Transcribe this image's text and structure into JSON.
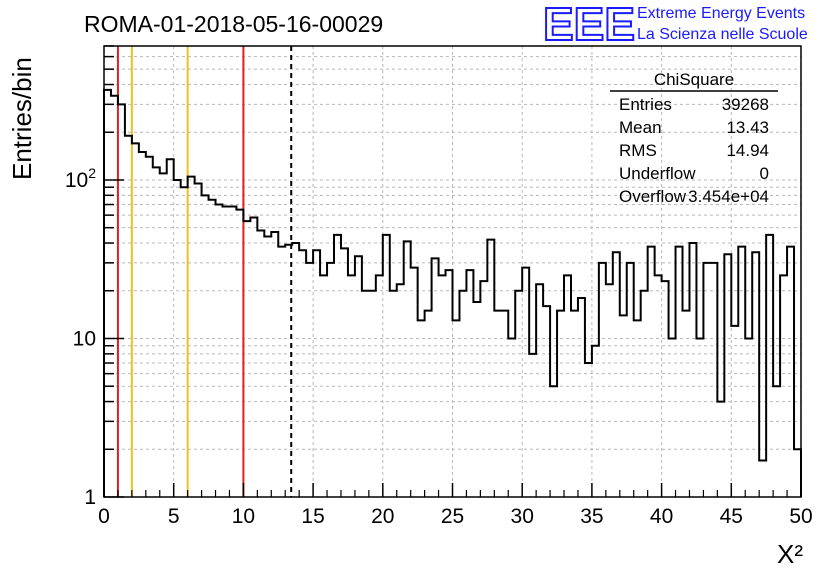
{
  "chart_data": {
    "type": "bar",
    "title": "ROMA-01-2018-05-16-00029",
    "ylabel": "Entries/bin",
    "xlabel": "X²",
    "xlim": [
      0,
      50
    ],
    "ylim": [
      1,
      700
    ],
    "ylog": true,
    "grid": true,
    "x_ticks": [
      "0",
      "5",
      "10",
      "15",
      "20",
      "25",
      "30",
      "35",
      "40",
      "45",
      "50"
    ],
    "y_ticks": [
      {
        "value": 1,
        "label": "1"
      },
      {
        "value": 10,
        "label": "10"
      },
      {
        "value": 100,
        "label": "10",
        "exp": "2"
      }
    ],
    "bin_width": 0.5,
    "values": [
      370,
      340,
      300,
      190,
      170,
      150,
      140,
      120,
      110,
      135,
      100,
      90,
      105,
      95,
      80,
      75,
      70,
      68,
      68,
      65,
      55,
      58,
      48,
      44,
      47,
      38,
      39,
      40,
      36,
      30,
      36,
      25,
      30,
      45,
      37,
      25,
      33,
      20,
      20,
      25,
      45,
      20,
      22,
      41,
      28,
      13,
      15,
      32,
      25,
      27,
      13,
      20,
      27,
      17,
      23,
      42,
      15,
      15,
      10,
      20,
      28,
      8,
      22,
      16,
      5,
      15,
      25,
      15,
      18,
      7,
      9,
      30,
      22,
      35,
      14,
      30,
      13,
      20,
      38,
      25,
      23,
      10,
      38,
      15,
      40,
      10,
      30,
      30,
      4,
      34,
      12,
      38,
      10,
      35,
      1.7,
      45,
      5,
      25,
      38,
      2
    ],
    "vlines": [
      {
        "x": 1,
        "color": "#e02020",
        "style": "solid"
      },
      {
        "x": 2,
        "color": "#f0c020",
        "style": "solid"
      },
      {
        "x": 6,
        "color": "#f0c020",
        "style": "solid"
      },
      {
        "x": 10,
        "color": "#e02020",
        "style": "solid"
      },
      {
        "x": 13.43,
        "color": "#000000",
        "style": "dashed"
      }
    ],
    "stats_box": {
      "title": "ChiSquare",
      "rows": [
        {
          "label": "Entries",
          "value": "39268"
        },
        {
          "label": "Mean",
          "value": "13.43"
        },
        {
          "label": "RMS",
          "value": "14.94"
        },
        {
          "label": "Underflow",
          "value": "0"
        },
        {
          "label": "Overflow",
          "value": "3.454e+04"
        }
      ]
    }
  },
  "logo": {
    "mark": "EEE",
    "line1": "Extreme Energy Events",
    "line2": "La Scienza nelle Scuole",
    "color": "#1a1aff"
  }
}
